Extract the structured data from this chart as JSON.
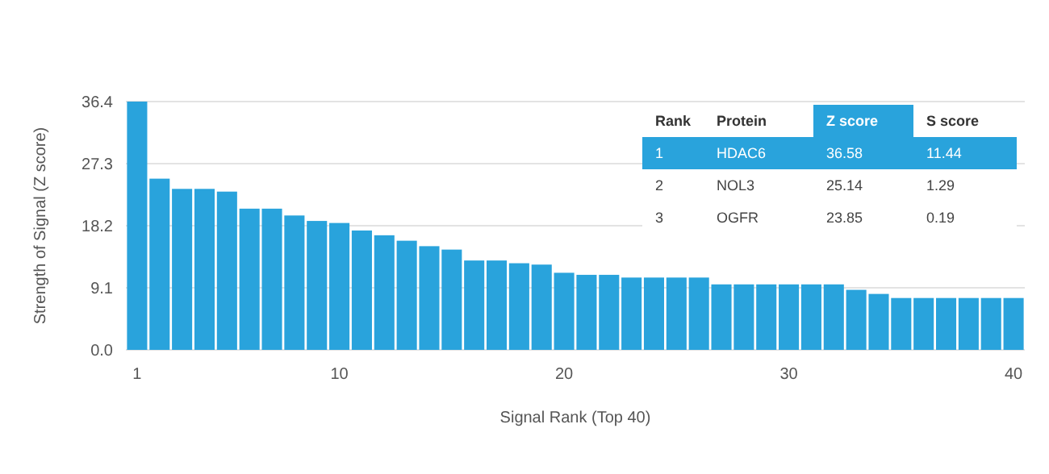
{
  "chart_data": [
    {
      "type": "bar",
      "xlabel": "Signal Rank (Top 40)",
      "ylabel": "Strength of Signal (Z score)",
      "color": "#29a3dc",
      "x": [
        1,
        2,
        3,
        4,
        5,
        6,
        7,
        8,
        9,
        10,
        11,
        12,
        13,
        14,
        15,
        16,
        17,
        18,
        19,
        20,
        21,
        22,
        23,
        24,
        25,
        26,
        27,
        28,
        29,
        30,
        31,
        32,
        33,
        34,
        35,
        36,
        37,
        38,
        39,
        40
      ],
      "values": [
        36.4,
        25.1,
        23.6,
        23.6,
        23.2,
        20.7,
        20.7,
        19.7,
        18.9,
        18.6,
        17.5,
        16.8,
        16.0,
        15.2,
        14.7,
        13.1,
        13.1,
        12.7,
        12.5,
        11.3,
        11.0,
        11.0,
        10.6,
        10.6,
        10.6,
        10.6,
        9.6,
        9.6,
        9.6,
        9.6,
        9.6,
        9.6,
        8.8,
        8.2,
        7.6,
        7.6,
        7.6,
        7.6,
        7.6,
        7.6
      ],
      "xlim": [
        0.5,
        40.5
      ],
      "xticks": [
        1,
        10,
        20,
        30,
        40
      ],
      "ylim": [
        0,
        36.4
      ],
      "yticks": [
        {
          "value": 0,
          "label": "0.0"
        },
        9.1,
        18.2,
        27.3,
        36.4
      ],
      "grid": "y"
    },
    {
      "type": "other",
      "categories": [
        "Rank",
        "Protein",
        "Z score",
        "S score"
      ],
      "cell_labels": [
        [
          "1",
          "HDAC6",
          "36.58",
          "11.44"
        ],
        [
          "2",
          "NOL3",
          "25.14",
          "1.29"
        ],
        [
          "3",
          "OGFR",
          "23.85",
          "0.19"
        ]
      ]
    }
  ]
}
